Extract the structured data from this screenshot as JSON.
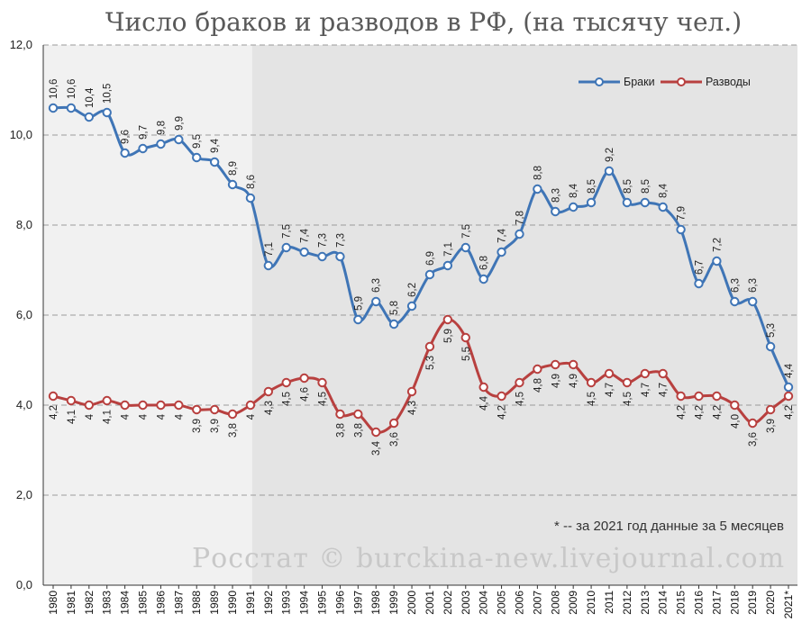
{
  "chart_data": {
    "type": "line",
    "title": "Число браков и разводов в РФ, (на тысячу чел.)",
    "x": [
      "1980",
      "1981",
      "1982",
      "1983",
      "1984",
      "1985",
      "1986",
      "1987",
      "1988",
      "1989",
      "1990",
      "1991",
      "1992",
      "1993",
      "1994",
      "1995",
      "1996",
      "1997",
      "1998",
      "1999",
      "2000",
      "2001",
      "2002",
      "2003",
      "2004",
      "2005",
      "2006",
      "2007",
      "2008",
      "2009",
      "2010",
      "2011",
      "2012",
      "2013",
      "2014",
      "2015",
      "2016",
      "2017",
      "2018",
      "2019",
      "2020",
      "2021*"
    ],
    "ylim": [
      0,
      12
    ],
    "yticks": [
      "0,0",
      "2,0",
      "4,0",
      "6,0",
      "8,0",
      "10,0",
      "12,0"
    ],
    "ytick_values": [
      0,
      2,
      4,
      6,
      8,
      10,
      12
    ],
    "grid": "horizontal dashed",
    "legend_position": "top-right",
    "shaded_region_from": "1991",
    "series": [
      {
        "name": "Браки",
        "color": "#3f75b6",
        "values": [
          10.6,
          10.6,
          10.4,
          10.5,
          9.6,
          9.7,
          9.8,
          9.9,
          9.5,
          9.4,
          8.9,
          8.6,
          7.1,
          7.5,
          7.4,
          7.3,
          7.3,
          5.9,
          6.3,
          5.8,
          6.2,
          6.9,
          7.1,
          7.5,
          6.8,
          7.4,
          7.8,
          8.8,
          8.3,
          8.4,
          8.5,
          9.2,
          8.5,
          8.5,
          8.4,
          7.9,
          6.7,
          7.2,
          6.3,
          6.3,
          5.3,
          4.4
        ],
        "labels": [
          "10,6",
          "10,6",
          "10,4",
          "10,5",
          "9,6",
          "9,7",
          "9,8",
          "9,9",
          "9,5",
          "9,4",
          "8,9",
          "8,6",
          "7,1",
          "7,5",
          "7,4",
          "7,3",
          "7,3",
          "5,9",
          "6,3",
          "5,8",
          "6,2",
          "6,9",
          "7,1",
          "7,5",
          "6,8",
          "7,4",
          "7,8",
          "8,8",
          "8,3",
          "8,4",
          "8,5",
          "9,2",
          "8,5",
          "8,5",
          "8,4",
          "7,9",
          "6,7",
          "7,2",
          "6,3",
          "6,3",
          "5,3",
          "4,4"
        ]
      },
      {
        "name": "Разводы",
        "color": "#b8403f",
        "values": [
          4.2,
          4.1,
          4.0,
          4.1,
          4.0,
          4.0,
          4.0,
          4.0,
          3.9,
          3.9,
          3.8,
          4.0,
          4.3,
          4.5,
          4.6,
          4.5,
          3.8,
          3.8,
          3.4,
          3.6,
          4.3,
          5.3,
          5.9,
          5.5,
          4.4,
          4.2,
          4.5,
          4.8,
          4.9,
          4.9,
          4.5,
          4.7,
          4.5,
          4.7,
          4.7,
          4.2,
          4.2,
          4.2,
          4.0,
          3.6,
          3.9,
          4.2
        ],
        "labels": [
          "4,2",
          "4,1",
          "4",
          "4,1",
          "4",
          "4",
          "4",
          "4",
          "3,9",
          "3,9",
          "3,8",
          "4",
          "4,3",
          "4,5",
          "4,6",
          "4,5",
          "3,8",
          "3,8",
          "3,4",
          "3,6",
          "4,3",
          "5,3",
          "5,9",
          "5,5",
          "4,4",
          "4,2",
          "4,5",
          "4,8",
          "4,9",
          "4,9",
          "4,5",
          "4,7",
          "4,5",
          "4,7",
          "4,7",
          "4,2",
          "4,2",
          "4,2",
          "4,0",
          "3,6",
          "3,9",
          "4,2"
        ]
      }
    ],
    "annotation": "* -- за 2021 год данные за 5 месяцев",
    "watermark": "Росстат © burckina-new.livejournal.com"
  },
  "colors": {
    "plot_bg_left": "#f1f1f1",
    "plot_bg_right": "#e4e4e4",
    "grid": "#9a9a9a"
  }
}
